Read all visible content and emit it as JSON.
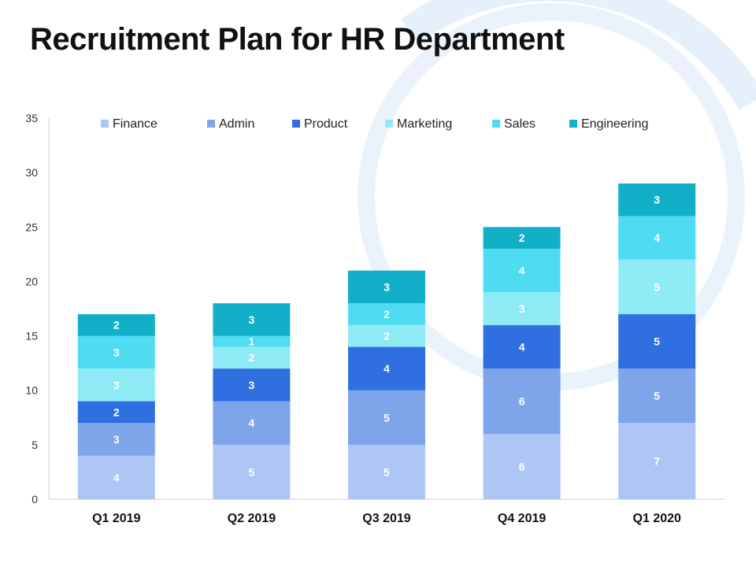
{
  "slide": {
    "title": "Recruitment Plan for HR Department",
    "background_accent": "#dcecf9"
  },
  "chart_data": {
    "type": "bar",
    "stacked": true,
    "title": "",
    "xlabel": "",
    "ylabel": "",
    "ylim": [
      0,
      35
    ],
    "yticks": [
      0,
      5,
      10,
      15,
      20,
      25,
      30,
      35
    ],
    "categories": [
      "Q1 2019",
      "Q2 2019",
      "Q3 2019",
      "Q4 2019",
      "Q1 2020"
    ],
    "legend_position": "top",
    "series": [
      {
        "name": "Finance",
        "color": "#aec6f4",
        "values": [
          4,
          5,
          5,
          6,
          7
        ]
      },
      {
        "name": "Admin",
        "color": "#7ea4ea",
        "values": [
          3,
          4,
          5,
          6,
          5
        ]
      },
      {
        "name": "Product",
        "color": "#2f6fe0",
        "values": [
          2,
          3,
          4,
          4,
          5
        ]
      },
      {
        "name": "Marketing",
        "color": "#8eebf5",
        "values": [
          3,
          2,
          2,
          3,
          5
        ]
      },
      {
        "name": "Sales",
        "color": "#4fdcf3",
        "values": [
          3,
          1,
          2,
          4,
          4
        ]
      },
      {
        "name": "Engineering",
        "color": "#12b0c8",
        "values": [
          2,
          3,
          3,
          2,
          3
        ]
      }
    ]
  }
}
